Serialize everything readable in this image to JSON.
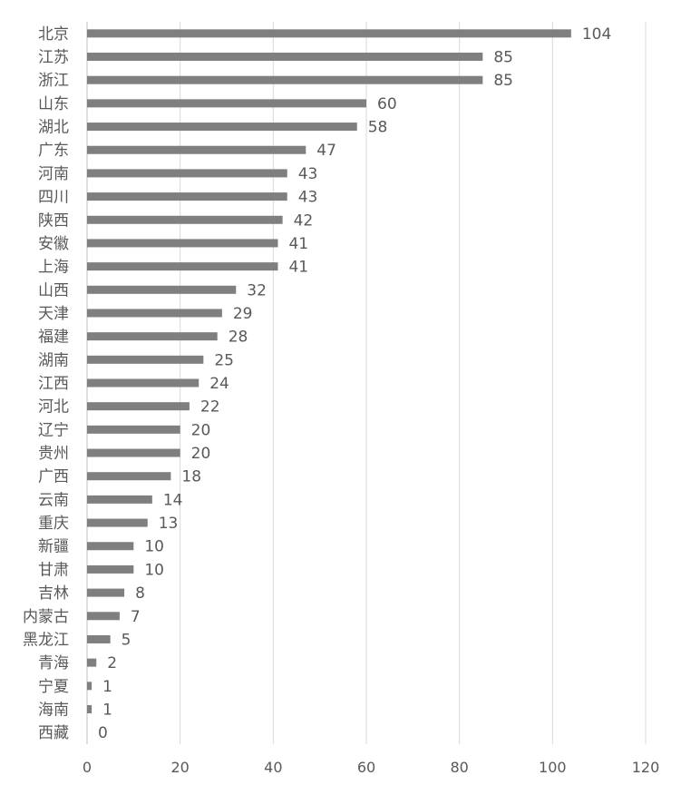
{
  "chart_data": {
    "type": "bar",
    "orientation": "horizontal",
    "title": "",
    "xlabel": "",
    "ylabel": "",
    "xlim": [
      0,
      120
    ],
    "x_ticks": [
      "0",
      "20",
      "40",
      "60",
      "80",
      "100",
      "120"
    ],
    "grid": "vertical",
    "legend": "none",
    "bar_color": "#7f7f7f",
    "grid_color": "#d9d9d9",
    "axis_color": "#bfbfbf",
    "text_color": "#595959",
    "categories": [
      "北京",
      "江苏",
      "浙江",
      "山东",
      "湖北",
      "广东",
      "河南",
      "四川",
      "陕西",
      "安徽",
      "上海",
      "山西",
      "天津",
      "福建",
      "湖南",
      "江西",
      "河北",
      "辽宁",
      "贵州",
      "广西",
      "云南",
      "重庆",
      "新疆",
      "甘肃",
      "吉林",
      "内蒙古",
      "黑龙江",
      "青海",
      "宁夏",
      "海南",
      "西藏"
    ],
    "values": [
      104,
      85,
      85,
      60,
      58,
      47,
      43,
      43,
      42,
      41,
      41,
      32,
      29,
      28,
      25,
      24,
      22,
      20,
      20,
      18,
      14,
      13,
      10,
      10,
      8,
      7,
      5,
      2,
      1,
      1,
      0
    ]
  }
}
